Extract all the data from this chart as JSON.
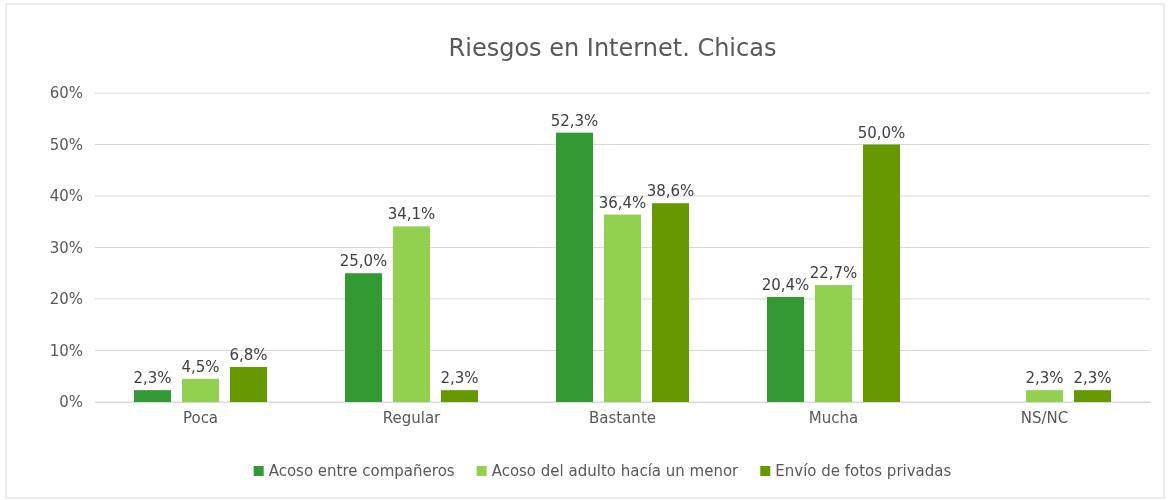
{
  "chart_data": {
    "type": "bar",
    "title": "Riesgos en Internet. Chicas",
    "categories": [
      "Poca",
      "Regular",
      "Bastante",
      "Mucha",
      "NS/NC"
    ],
    "series": [
      {
        "name": "Acoso entre compañeros",
        "color": "#339933",
        "values": [
          2.3,
          25.0,
          52.3,
          20.4,
          null
        ],
        "value_labels": [
          "2,3%",
          "25,0%",
          "52,3%",
          "20,4%",
          null
        ]
      },
      {
        "name": "Acoso del adulto hacía un menor",
        "color": "#92d050",
        "values": [
          4.5,
          34.1,
          36.4,
          22.7,
          2.3
        ],
        "value_labels": [
          "4,5%",
          "34,1%",
          "36,4%",
          "22,7%",
          "2,3%"
        ]
      },
      {
        "name": "Envío de fotos privadas",
        "color": "#669900",
        "values": [
          6.8,
          2.3,
          38.6,
          50.0,
          2.3
        ],
        "value_labels": [
          "6,8%",
          "2,3%",
          "38,6%",
          "50,0%",
          "2,3%"
        ]
      }
    ],
    "ylim": [
      0,
      60
    ],
    "yticks": [
      {
        "value": 0,
        "label": "0%"
      },
      {
        "value": 10,
        "label": "10%"
      },
      {
        "value": 20,
        "label": "20%"
      },
      {
        "value": 30,
        "label": "30%"
      },
      {
        "value": 40,
        "label": "40%"
      },
      {
        "value": 50,
        "label": "50%"
      },
      {
        "value": 60,
        "label": "60%"
      }
    ],
    "grid": "y",
    "legend": "bottom"
  }
}
